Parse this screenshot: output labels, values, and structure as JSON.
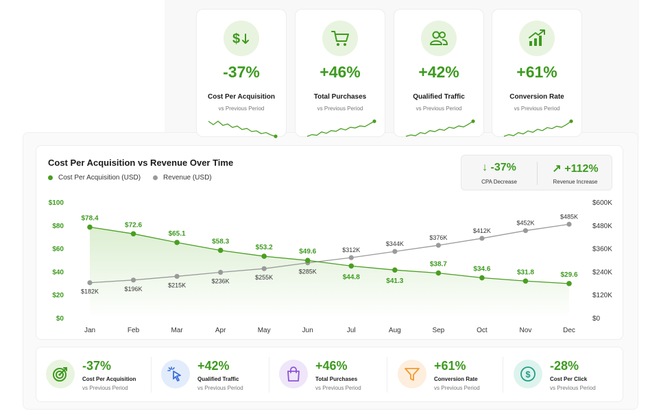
{
  "kpis": [
    {
      "value": "-37%",
      "label": "Cost Per Acquisition",
      "sub": "vs Previous Period",
      "icon": "dollar-down-icon",
      "trend": [
        6,
        5,
        6,
        4.8,
        5.2,
        4.2,
        4.6,
        3.6,
        3.9,
        3,
        3.2,
        2.4,
        2.7,
        2,
        1.6
      ]
    },
    {
      "value": "+46%",
      "label": "Total Purchases",
      "sub": "vs Previous Period",
      "icon": "cart-icon",
      "trend": [
        1.5,
        2,
        1.8,
        2.8,
        2.4,
        3.2,
        3,
        3.8,
        3.4,
        4.2,
        4,
        4.6,
        4.4,
        5.2,
        6
      ]
    },
    {
      "value": "+42%",
      "label": "Qualified Traffic",
      "sub": "vs Previous Period",
      "icon": "users-icon",
      "trend": [
        1.5,
        1.9,
        1.7,
        2.6,
        2.3,
        3.2,
        2.9,
        3.6,
        3.3,
        4.2,
        3.9,
        4.6,
        4.3,
        5.1,
        6
      ]
    },
    {
      "value": "+61%",
      "label": "Conversion Rate",
      "sub": "vs Previous Period",
      "icon": "growth-chart-icon",
      "trend": [
        1.5,
        2,
        1.7,
        2.6,
        2.2,
        3.1,
        2.7,
        3.6,
        3.2,
        4.1,
        3.8,
        4.5,
        4.2,
        5,
        6
      ]
    }
  ],
  "summary": {
    "cpa": {
      "value": "-37%",
      "label": "CPA Decrease",
      "icon": "arrow-down-icon"
    },
    "revenue": {
      "value": "+112%",
      "label": "Revenue Increase",
      "icon": "arrow-up-right-icon"
    }
  },
  "colors": {
    "green": "#4a9e22",
    "green_text": "#3d9a1f",
    "gray": "#9a9a9a"
  },
  "chart_data": {
    "type": "line",
    "title": "Cost Per Acquisition vs Revenue Over Time",
    "categories": [
      "Jan",
      "Feb",
      "Mar",
      "Apr",
      "May",
      "Jun",
      "Jul",
      "Aug",
      "Sep",
      "Oct",
      "Nov",
      "Dec"
    ],
    "series": [
      {
        "name": "Cost Per Acquisition (USD)",
        "axis": "left",
        "values": [
          78.4,
          72.6,
          65.1,
          58.3,
          53.2,
          49.6,
          44.8,
          41.3,
          38.7,
          34.6,
          31.8,
          29.6
        ],
        "labels": [
          "$78.4",
          "$72.6",
          "$65.1",
          "$58.3",
          "$53.2",
          "$49.6",
          "$44.8",
          "$41.3",
          "$38.7",
          "$34.6",
          "$31.8",
          "$29.6"
        ]
      },
      {
        "name": "Revenue (USD)",
        "axis": "right",
        "values": [
          182,
          196,
          215,
          236,
          255,
          285,
          312,
          344,
          376,
          412,
          452,
          485
        ],
        "labels": [
          "$182K",
          "$196K",
          "$215K",
          "$236K",
          "$255K",
          "$285K",
          "$312K",
          "$344K",
          "$376K",
          "$412K",
          "$452K",
          "$485K"
        ]
      }
    ],
    "y_left": {
      "range": [
        0,
        100
      ],
      "ticks": [
        "$0",
        "$20",
        "$40",
        "$60",
        "$80",
        "$100"
      ]
    },
    "y_right": {
      "range": [
        0,
        600
      ],
      "unit": "K",
      "ticks": [
        "$0",
        "$120K",
        "$240K",
        "$360K",
        "$480K",
        "$600K"
      ]
    },
    "legend_position": "top-left",
    "grid": false
  },
  "bottom_stats": [
    {
      "value": "-37%",
      "label": "Cost Per Acquisition",
      "sub": "vs Previous Period",
      "icon": "target-icon",
      "icon_bg": "#e8f4df",
      "icon_color": "#3d9a1f"
    },
    {
      "value": "+42%",
      "label": "Qualified Traffic",
      "sub": "vs Previous Period",
      "icon": "cursor-click-icon",
      "icon_bg": "#e3ecfb",
      "icon_color": "#3b6fd8"
    },
    {
      "value": "+46%",
      "label": "Total Purchases",
      "sub": "vs Previous Period",
      "icon": "shopping-bag-icon",
      "icon_bg": "#efe6fa",
      "icon_color": "#8b54d6"
    },
    {
      "value": "+61%",
      "label": "Conversion Rate",
      "sub": "vs Previous Period",
      "icon": "funnel-icon",
      "icon_bg": "#fdeedd",
      "icon_color": "#f29a2e"
    },
    {
      "value": "-28%",
      "label": "Cost Per Click",
      "sub": "vs Previous Period",
      "icon": "dollar-circle-icon",
      "icon_bg": "#def3ee",
      "icon_color": "#1f9d84"
    }
  ]
}
